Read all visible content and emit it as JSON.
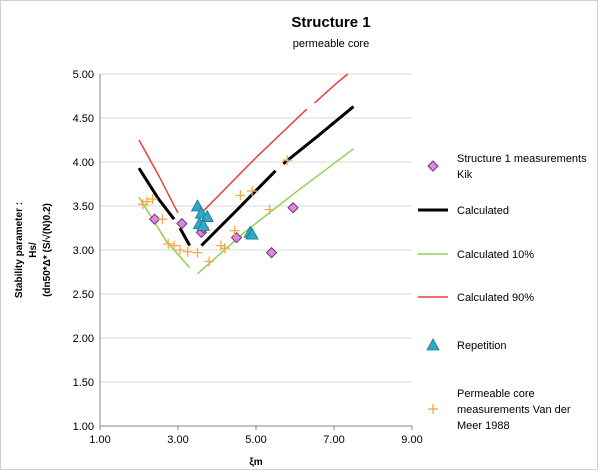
{
  "chart_data": {
    "type": "scatter",
    "title": "Structure 1",
    "subtitle": "permeable core",
    "xlabel": "ξm",
    "ylabel_lines": [
      "Stability parameter :",
      "Hs/",
      "(dn50*Δ* (S/√(N)0.2)"
    ],
    "xlim": [
      1.0,
      9.0
    ],
    "ylim": [
      1.0,
      5.0
    ],
    "x_ticks": [
      "1.00",
      "3.00",
      "5.00",
      "7.00",
      "9.00"
    ],
    "x_tick_values": [
      1,
      3,
      5,
      7,
      9
    ],
    "y_ticks": [
      "1.00",
      "1.50",
      "2.00",
      "2.50",
      "3.00",
      "3.50",
      "4.00",
      "4.50",
      "5.00"
    ],
    "y_tick_values": [
      1.0,
      1.5,
      2.0,
      2.5,
      3.0,
      3.5,
      4.0,
      4.5,
      5.0
    ],
    "grid": "horizontal",
    "legend_position": "right",
    "series": [
      {
        "name": "Structure 1 measurements Kik",
        "legend_lines": [
          "Structure 1 measurements",
          "Kik"
        ],
        "kind": "marker",
        "marker": "diamond",
        "color": "#d98bdc",
        "stroke": "#7a2d7e",
        "points": [
          [
            2.4,
            3.35
          ],
          [
            3.1,
            3.3
          ],
          [
            3.6,
            3.2
          ],
          [
            3.65,
            3.25
          ],
          [
            4.5,
            3.14
          ],
          [
            5.4,
            2.97
          ],
          [
            5.95,
            3.48
          ]
        ]
      },
      {
        "name": "Calculated",
        "legend_lines": [
          "Calculated"
        ],
        "kind": "line",
        "color": "#000000",
        "width": 3,
        "dashes": [
          [
            [
              2.0,
              3.93
            ],
            [
              2.5,
              3.58
            ],
            [
              2.9,
              3.35
            ]
          ],
          [
            [
              3.05,
              3.25
            ],
            [
              3.3,
              3.05
            ]
          ],
          [
            [
              3.6,
              3.05
            ],
            [
              4.5,
              3.45
            ],
            [
              5.5,
              3.9
            ]
          ],
          [
            [
              5.7,
              3.98
            ],
            [
              6.6,
              4.3
            ],
            [
              7.5,
              4.63
            ]
          ]
        ]
      },
      {
        "name": "Calculated 10%",
        "legend_lines": [
          "Calculated 10%"
        ],
        "kind": "line",
        "color": "#92d050",
        "width": 1.5,
        "dashes": [
          [
            [
              2.0,
              3.6
            ],
            [
              2.7,
              3.1
            ],
            [
              3.3,
              2.8
            ]
          ],
          [
            [
              3.5,
              2.73
            ],
            [
              4.7,
              3.2
            ],
            [
              6.0,
              3.65
            ],
            [
              7.5,
              4.15
            ]
          ]
        ]
      },
      {
        "name": "Calculated 90%",
        "legend_lines": [
          "Calculated 90%"
        ],
        "kind": "line",
        "color": "#e8413a",
        "width": 1.5,
        "dashes": [
          [
            [
              2.0,
              4.25
            ],
            [
              2.5,
              3.85
            ],
            [
              3.0,
              3.42
            ]
          ],
          [
            [
              3.6,
              3.42
            ],
            [
              5.0,
              4.05
            ],
            [
              6.3,
              4.6
            ]
          ],
          [
            [
              6.5,
              4.67
            ],
            [
              7.0,
              4.87
            ],
            [
              7.35,
              5.0
            ]
          ]
        ]
      },
      {
        "name": "Repetition",
        "legend_lines": [
          "Repetition"
        ],
        "kind": "marker",
        "marker": "triangle",
        "color": "#31a8c4",
        "stroke": "#1b7891",
        "points": [
          [
            3.5,
            3.5
          ],
          [
            3.6,
            3.42
          ],
          [
            3.75,
            3.38
          ],
          [
            3.55,
            3.3
          ],
          [
            3.65,
            3.28
          ],
          [
            4.85,
            3.2
          ],
          [
            4.9,
            3.18
          ]
        ]
      },
      {
        "name": "Permeable core measurements Van der Meer 1988",
        "legend_lines": [
          "Permeable core",
          "measurements Van der",
          "Meer 1988"
        ],
        "kind": "marker",
        "marker": "plus",
        "color": "#f4a84d",
        "stroke": "#e4902f",
        "points": [
          [
            2.1,
            3.52
          ],
          [
            2.2,
            3.55
          ],
          [
            2.35,
            3.58
          ],
          [
            2.6,
            3.35
          ],
          [
            2.75,
            3.07
          ],
          [
            2.9,
            3.05
          ],
          [
            3.05,
            3.0
          ],
          [
            3.25,
            2.98
          ],
          [
            3.5,
            2.97
          ],
          [
            3.8,
            2.87
          ],
          [
            4.1,
            3.05
          ],
          [
            4.2,
            3.02
          ],
          [
            4.45,
            3.22
          ],
          [
            4.6,
            3.62
          ],
          [
            4.9,
            3.67
          ],
          [
            5.35,
            3.46
          ],
          [
            5.8,
            4.02
          ]
        ]
      }
    ]
  }
}
